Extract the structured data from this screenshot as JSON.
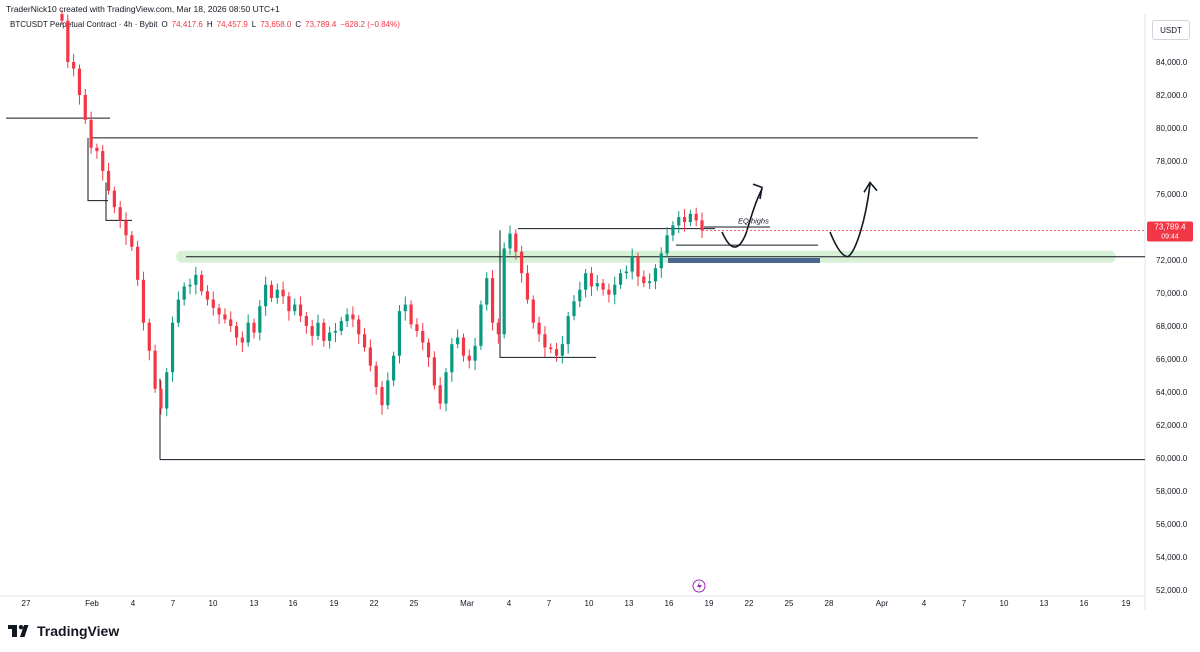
{
  "header": {
    "created_line": "TraderNick10 created with TradingView.com, Mar 18, 2026 08:50 UTC+1",
    "symbol": "BTCUSDT Perpetual Contract · 4h · Bybit",
    "o_label": "O",
    "o_value": "74,417.6",
    "h_label": "H",
    "h_value": "74,457.9",
    "l_label": "L",
    "l_value": "73,658.0",
    "c_label": "C",
    "c_value": "73,789.4",
    "change": "−628.2 (−0.84%)"
  },
  "currency_button": "USDT",
  "brand": "TradingView",
  "colors": {
    "up": "#089981",
    "down": "#f23645",
    "zone": "#c9ecc9",
    "demand": "#2f4f7f"
  },
  "chart_data": {
    "type": "candlestick",
    "timeframe": "4h",
    "y_axis": {
      "min": 51000,
      "max": 87000,
      "ticks": [
        52000,
        54000,
        56000,
        58000,
        60000,
        62000,
        64000,
        66000,
        68000,
        70000,
        72000,
        74000,
        76000,
        78000,
        80000,
        82000,
        84000
      ],
      "tick_labels": [
        "52,000.0",
        "54,000.0",
        "56,000.0",
        "58,000.0",
        "60,000.0",
        "62,000.0",
        "64,000.0",
        "66,000.0",
        "68,000.0",
        "70,000.0",
        "72,000.0",
        "74,000.0",
        "76,000.0",
        "78,000.0",
        "80,000.0",
        "82,000.0",
        "84,000.0"
      ]
    },
    "x_axis": {
      "labels": [
        "27",
        "Feb",
        "4",
        "7",
        "10",
        "13",
        "16",
        "19",
        "22",
        "25",
        "Mar",
        "4",
        "7",
        "10",
        "13",
        "16",
        "19",
        "22",
        "25",
        "28",
        "Apr",
        "4",
        "7",
        "10",
        "13",
        "16",
        "19"
      ]
    },
    "last_price": {
      "value": 73789.4,
      "label": "73,789.4",
      "countdown": "09:44"
    },
    "annotations": {
      "eq_highs": "EQ highs"
    },
    "key_levels": [
      {
        "name": "range-high",
        "price": 79400
      },
      {
        "name": "support",
        "price": 72200
      },
      {
        "name": "range-low",
        "price": 59900
      },
      {
        "name": "early-high",
        "price": 80600
      }
    ],
    "close_path": [
      86500,
      84000,
      83600,
      82000,
      80500,
      78800,
      78600,
      77400,
      76200,
      75200,
      74400,
      73500,
      72800,
      70800,
      68200,
      66500,
      64200,
      63000,
      65200,
      68200,
      69600,
      70400,
      70500,
      71100,
      70100,
      69600,
      69100,
      68700,
      68400,
      68000,
      67300,
      67000,
      68200,
      67600,
      69200,
      70500,
      69700,
      70200,
      69800,
      68900,
      69300,
      68600,
      68000,
      67400,
      68200,
      67100,
      67600,
      67700,
      68300,
      68700,
      68400,
      67500,
      66700,
      65600,
      64300,
      63200,
      64700,
      66200,
      68900,
      69300,
      68100,
      67700,
      67000,
      66100,
      64400,
      63300,
      65200,
      66900,
      67300,
      66200,
      65900,
      66800,
      69300,
      70900,
      68200,
      67500,
      72700,
      73600,
      72500,
      71200,
      69600,
      68200,
      67500,
      66700,
      66600,
      66200,
      66900,
      68600,
      69500,
      70200,
      71200,
      70400,
      70600,
      70200,
      69900,
      70500,
      71200,
      71300,
      72200,
      71000,
      70600,
      70700,
      71500,
      72400,
      73500,
      74100,
      74600,
      74300,
      74800,
      74400,
      73800
    ]
  }
}
